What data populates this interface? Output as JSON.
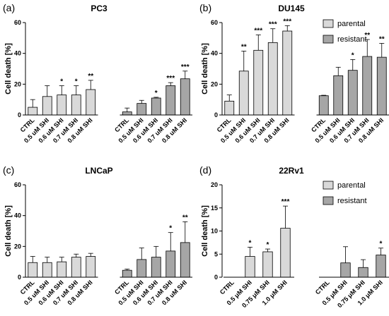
{
  "colors": {
    "parental": "#d9d9d9",
    "resistant": "#a6a6a6",
    "axis": "#000000"
  },
  "legend": {
    "parental": "parental",
    "resistant": "resistant"
  },
  "chart_data": [
    {
      "panel": "(a)",
      "title": "PC3",
      "type": "bar",
      "ylabel": "Cell death [%]",
      "ylim": [
        0,
        60
      ],
      "yticks": [
        0,
        20,
        40,
        60
      ],
      "show_legend": false,
      "groups": [
        {
          "series": "parental",
          "categories": [
            "CTRL",
            "0.5 uM SHI",
            "0.6 uM SHI",
            "0.7 uM SHI",
            "0.8 uM SHI"
          ],
          "values": [
            5,
            12,
            13,
            13,
            16.5
          ],
          "errors": [
            5,
            7,
            6,
            6,
            6
          ],
          "stars": [
            "",
            "",
            "*",
            "*",
            "**"
          ]
        },
        {
          "series": "resistant",
          "categories": [
            "CTRL",
            "0.5 uM SHI",
            "0.6 uM SHI",
            "0.7 uM SHI",
            "0.8 uM SHI"
          ],
          "values": [
            2,
            7.5,
            11,
            19,
            23.5
          ],
          "errors": [
            2.5,
            2,
            0.5,
            2,
            5
          ],
          "stars": [
            "",
            "",
            "*",
            "***",
            "***"
          ]
        }
      ]
    },
    {
      "panel": "(b)",
      "title": "DU145",
      "type": "bar",
      "ylabel": "Cell death [%]",
      "ylim": [
        0,
        60
      ],
      "yticks": [
        0,
        20,
        40,
        60
      ],
      "show_legend": true,
      "groups": [
        {
          "series": "parental",
          "categories": [
            "CTRL",
            "0.5 uM SHI",
            "0.6 uM SHI",
            "0.7 uM SHI",
            "0.8 uM SHI"
          ],
          "values": [
            9,
            28.5,
            42,
            47,
            54.5
          ],
          "errors": [
            4,
            13,
            10,
            9,
            3.5
          ],
          "stars": [
            "",
            "**",
            "***",
            "***",
            "***"
          ]
        },
        {
          "series": "resistant",
          "categories": [
            "CTRL",
            "0.5 uM SHI",
            "0.6 uM SHI",
            "0.7 uM SHI",
            "0.8 uM SHI"
          ],
          "values": [
            12.5,
            25.5,
            29,
            38,
            37.5
          ],
          "errors": [
            0.3,
            5.5,
            7,
            11,
            9
          ],
          "stars": [
            "",
            "",
            "*",
            "**",
            "**"
          ]
        }
      ]
    },
    {
      "panel": "(c)",
      "title": "LNCaP",
      "type": "bar",
      "ylabel": "Cell death [%]",
      "ylim": [
        0,
        60
      ],
      "yticks": [
        0,
        20,
        40,
        60
      ],
      "show_legend": false,
      "groups": [
        {
          "series": "parental",
          "categories": [
            "CTRL",
            "0.5 uM SHI",
            "0.6 uM SHI",
            "0.7 uM SHI",
            "0.8 uM SHI"
          ],
          "values": [
            9.5,
            9.5,
            10,
            13,
            13.5
          ],
          "errors": [
            4,
            3.5,
            3,
            2,
            2
          ],
          "stars": [
            "",
            "",
            "",
            "",
            ""
          ]
        },
        {
          "series": "resistant",
          "categories": [
            "CTRL",
            "0.5 uM SHI",
            "0.6 uM SHI",
            "0.7 uM SHI",
            "0.8 uM SHI"
          ],
          "values": [
            4.5,
            11.5,
            13,
            17,
            22.5
          ],
          "errors": [
            0.8,
            7.5,
            7,
            12,
            13.5
          ],
          "stars": [
            "",
            "",
            "",
            "*",
            "**"
          ]
        }
      ]
    },
    {
      "panel": "(d)",
      "title": "22Rv1",
      "type": "bar",
      "ylabel": "Cell death [%]",
      "ylim": [
        0,
        20
      ],
      "yticks": [
        0,
        5,
        10,
        15,
        20
      ],
      "show_legend": true,
      "groups": [
        {
          "series": "parental",
          "categories": [
            "CTRL",
            "0.5 μM SHI",
            "0.75 μM SHI",
            "1.0 μM SHI"
          ],
          "values": [
            0,
            4.5,
            5.5,
            10.6
          ],
          "errors": [
            0,
            2,
            0.6,
            4.8
          ],
          "stars": [
            "",
            "*",
            "*",
            "***"
          ]
        },
        {
          "series": "resistant",
          "categories": [
            "CTRL",
            "0.5 μM SHI",
            "0.75 μM SHI",
            "1.0 μM SHI"
          ],
          "values": [
            0,
            3.1,
            2.1,
            4.8
          ],
          "errors": [
            0,
            3.5,
            1.7,
            1.5
          ],
          "stars": [
            "",
            "",
            "",
            "*"
          ]
        }
      ]
    }
  ]
}
